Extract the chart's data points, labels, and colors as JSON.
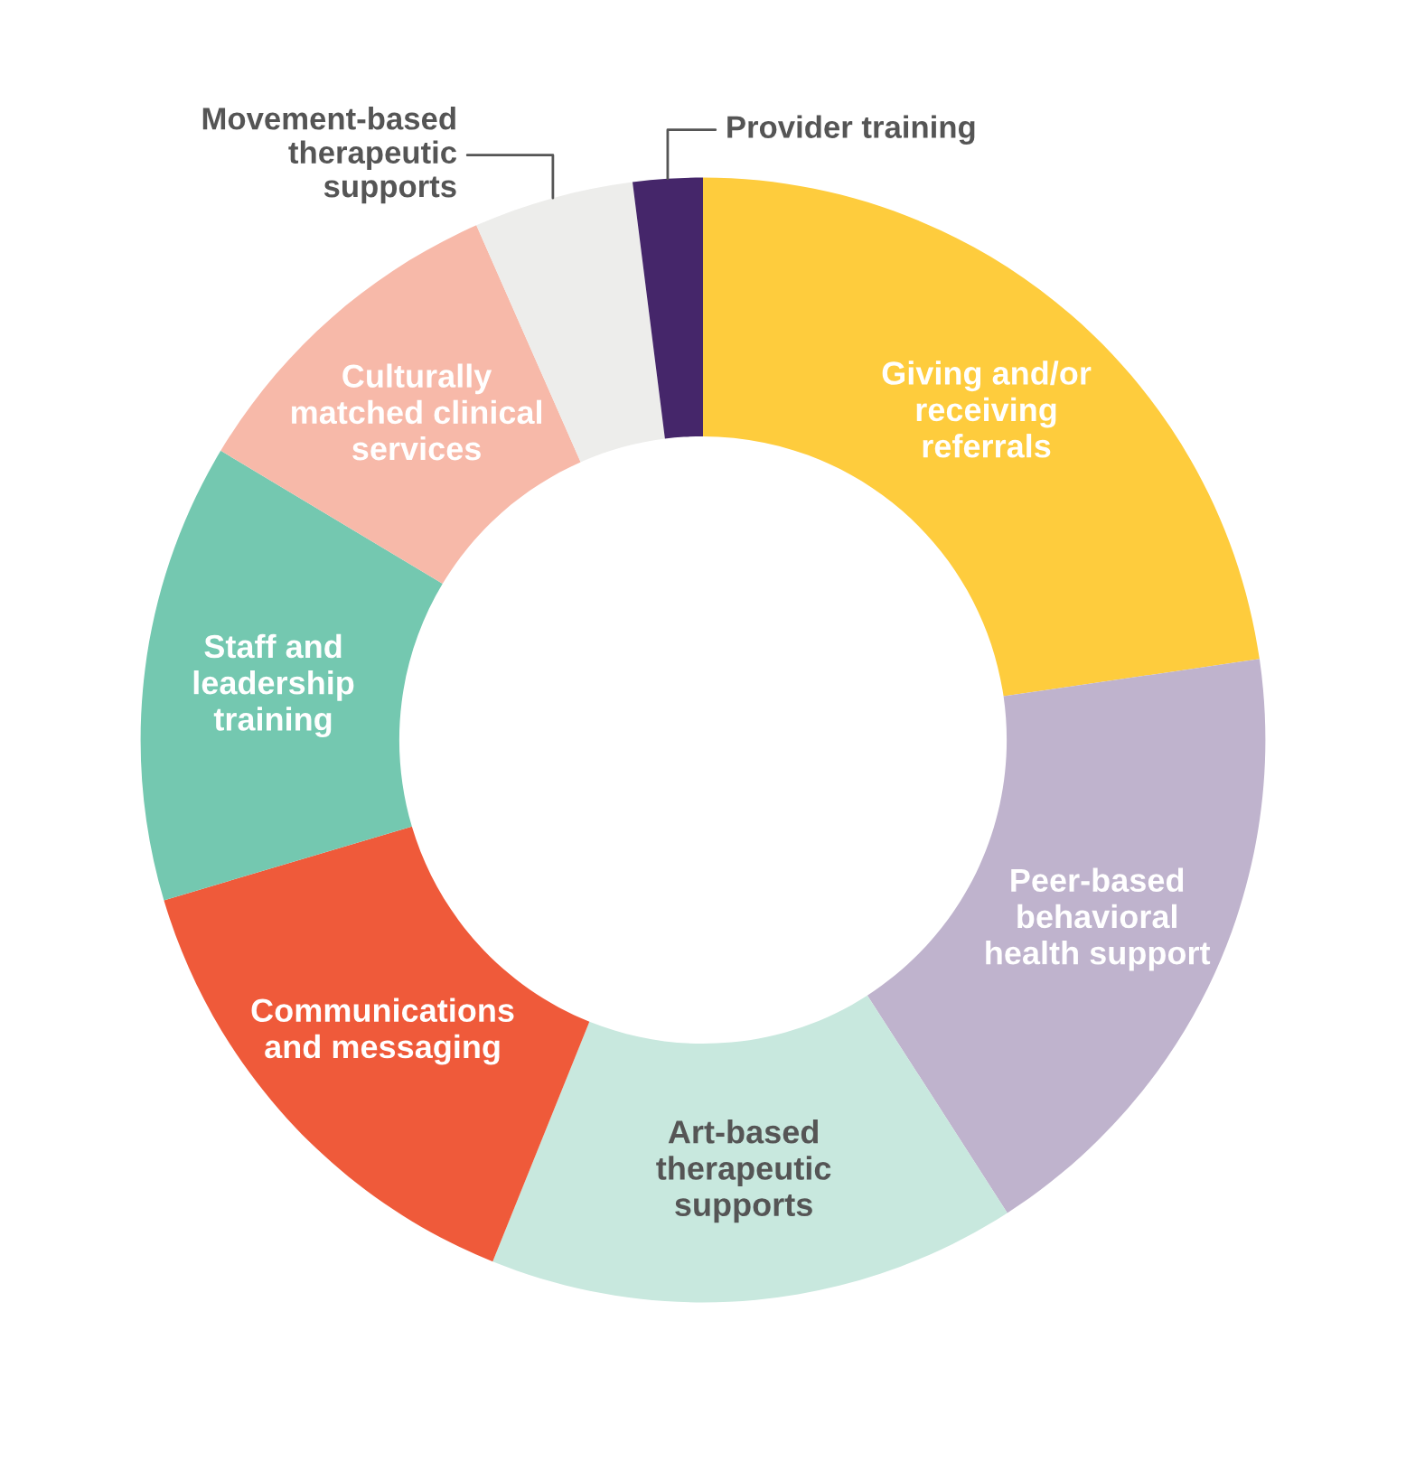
{
  "chart_data": {
    "type": "donut",
    "categories": [
      "Giving and/or\nreceiving\nreferrals",
      "Peer-based\nbehavioral\nhealth support",
      "Art-based\ntherapeutic\nsupports",
      "Communications\nand messaging",
      "Staff and\nleadership\ntraining",
      "Culturally\nmatched clinical\nservices",
      "Movement-based\ntherapeutic\nsupports",
      "Provider training"
    ],
    "values": [
      22.7,
      18.2,
      15.2,
      14.3,
      13.2,
      9.8,
      4.6,
      2.0
    ],
    "colors": [
      "#fecc3d",
      "#bfb3cd",
      "#c8e8de",
      "#ef5a3a",
      "#74c8b0",
      "#f7b9a9",
      "#ededeb",
      "#45266a"
    ],
    "legend": false
  }
}
